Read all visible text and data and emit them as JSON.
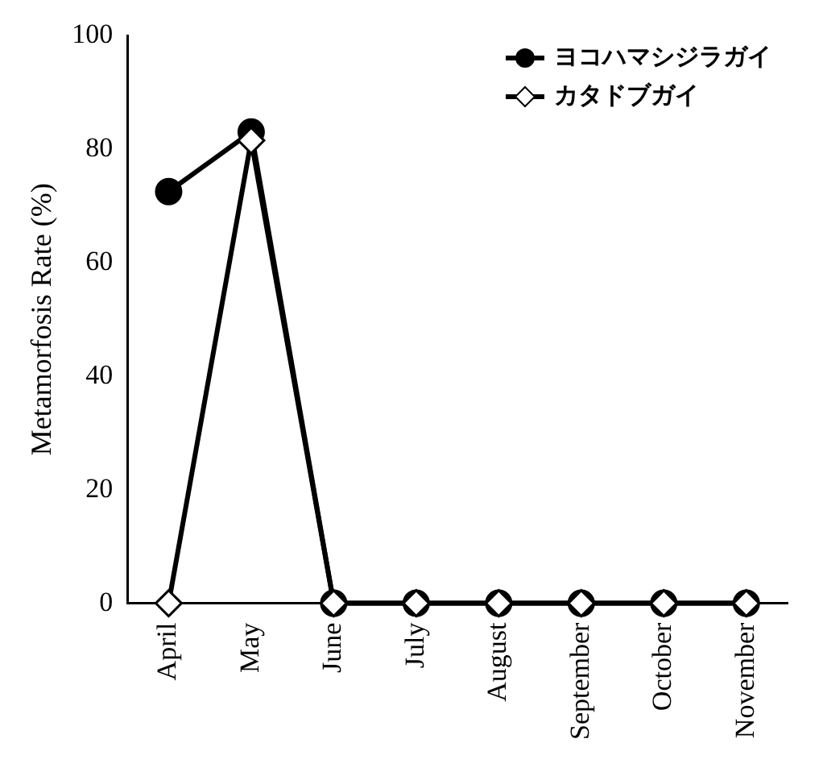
{
  "chart_data": {
    "type": "line",
    "ylabel": "Metamorfosis Rate (%)",
    "categories": [
      "April",
      "May",
      "June",
      "July",
      "August",
      "September",
      "October",
      "November"
    ],
    "series": [
      {
        "name": "ヨコハマシジラガイ",
        "color": "#000000",
        "marker": "circle",
        "values": [
          72.5,
          83,
          0,
          0,
          0,
          0,
          0,
          0
        ]
      },
      {
        "name": "カタドブガイ",
        "color": "#000000",
        "marker": "diamond",
        "values": [
          0,
          81.5,
          0,
          0,
          0,
          0,
          0,
          0
        ]
      }
    ],
    "ylim": [
      0,
      100
    ],
    "yticks": [
      0,
      20,
      40,
      60,
      80,
      100
    ],
    "grid": false,
    "legend": "top right"
  }
}
